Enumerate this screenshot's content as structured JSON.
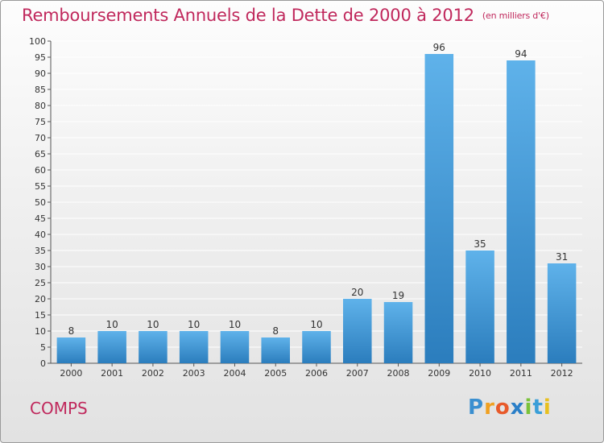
{
  "header": {
    "title": "Remboursements Annuels de la Dette de 2000 à 2012",
    "unit": "(en milliers d'€)"
  },
  "footer": {
    "place": "COMPS",
    "logo_letters": [
      {
        "char": "P",
        "color": "#3a8fd0"
      },
      {
        "char": "r",
        "color": "#f0a020"
      },
      {
        "char": "o",
        "color": "#e85a2a"
      },
      {
        "char": "x",
        "color": "#2a7fc8"
      },
      {
        "char": "i",
        "color": "#7ac23a"
      },
      {
        "char": "t",
        "color": "#3a9fd8"
      },
      {
        "char": "i",
        "color": "#e8c020"
      }
    ]
  },
  "colors": {
    "title": "#c0285c",
    "bar_top": "#5fb2ea",
    "bar_bottom": "#2b7dbd",
    "grid": "#ffffff",
    "axis": "#555555"
  },
  "chart_data": {
    "type": "bar",
    "categories": [
      "2000",
      "2001",
      "2002",
      "2003",
      "2004",
      "2005",
      "2006",
      "2007",
      "2008",
      "2009",
      "2010",
      "2011",
      "2012"
    ],
    "values": [
      8,
      10,
      10,
      10,
      10,
      8,
      10,
      20,
      19,
      96,
      35,
      94,
      31
    ],
    "data_labels": [
      "8",
      "10",
      "10",
      "10",
      "10",
      "8",
      "10",
      "20",
      "19",
      "96",
      "35",
      "94",
      "31"
    ],
    "yticks": [
      0,
      5,
      10,
      15,
      20,
      25,
      30,
      35,
      40,
      45,
      50,
      55,
      60,
      65,
      70,
      75,
      80,
      85,
      90,
      95,
      100
    ],
    "ylim": [
      0,
      100
    ],
    "grid": true
  }
}
